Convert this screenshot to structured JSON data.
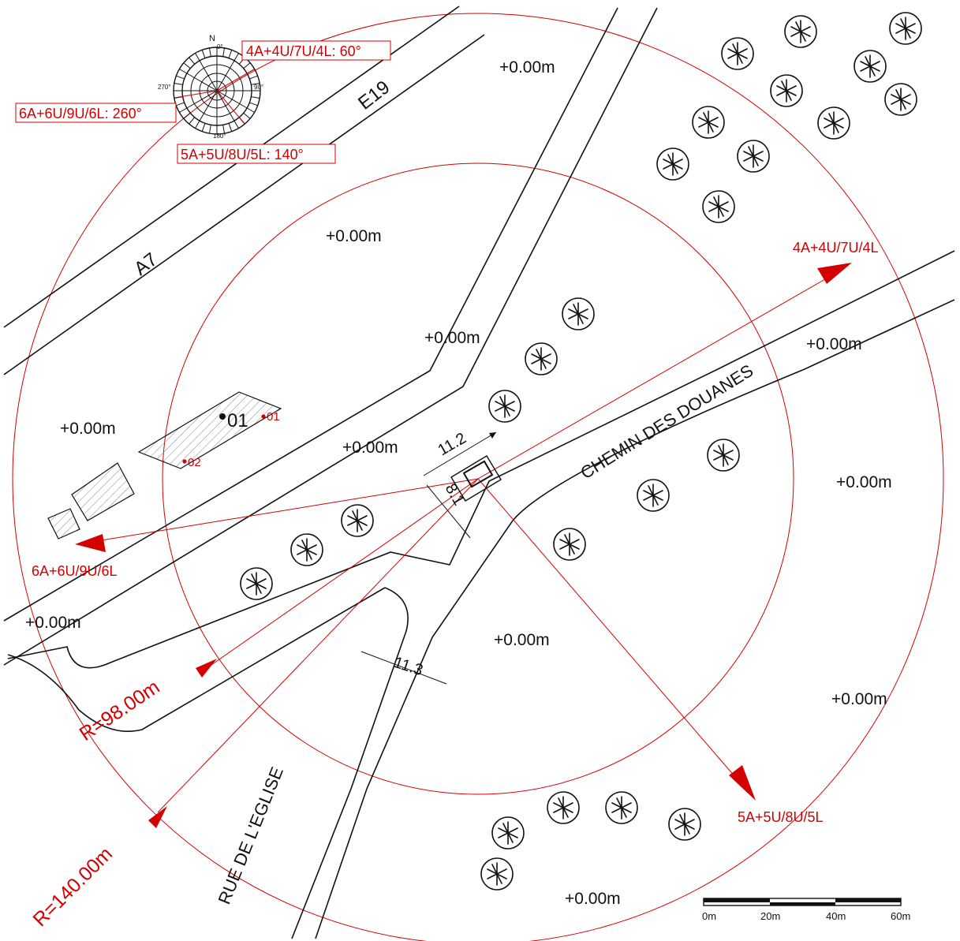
{
  "compass": {
    "north": "N",
    "deg_0": "0°",
    "deg_90": "90°",
    "deg_180": "180°",
    "deg_270": "270°",
    "label_60": "4A+4U/7U/4L: 60°",
    "label_260": "6A+6U/9U/6L: 260°",
    "label_140": "5A+5U/8U/5L: 140°"
  },
  "roads": {
    "a7": "A7",
    "e19": "E19",
    "chemin": "CHEMIN DES DOUANES",
    "eglise": "RUE DE L'EGLISE"
  },
  "elevations": [
    "+0.00m",
    "+0.00m",
    "+0.00m",
    "+0.00m",
    "+0.00m",
    "+0.00m",
    "+0.00m",
    "+0.00m",
    "+0.00m",
    "+0.00m",
    "+0.00m"
  ],
  "building": {
    "label": "01",
    "point1": "01",
    "point2": "02"
  },
  "dimensions": {
    "width": "11.2",
    "depth": "8.1",
    "road_width": "11.3"
  },
  "directions": {
    "dir_60": "4A+4U/7U/4L",
    "dir_260": "6A+6U/9U/6L",
    "dir_140": "5A+5U/8U/5L"
  },
  "radii": {
    "inner": "R=98.00m",
    "outer": "R=140.00m"
  },
  "scale_bar": {
    "ticks": [
      "0m",
      "20m",
      "40m",
      "60m"
    ]
  },
  "colors": {
    "annotation": "#d40000",
    "linework": "#111111"
  }
}
